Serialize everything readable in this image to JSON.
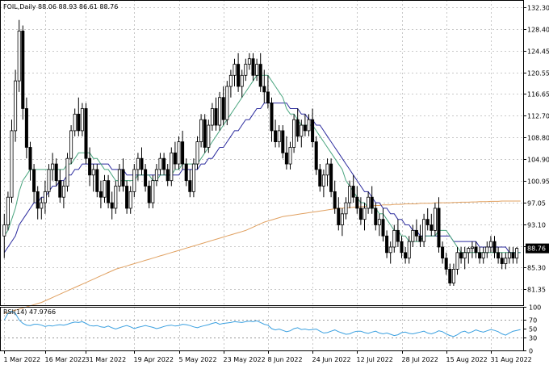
{
  "chart_data": [
    {
      "type": "candlestick",
      "title": "FOIL,Daily",
      "ohlc_label": "88.06 88.93 86.61 88.76",
      "last_price_label": "88.76",
      "last_price": 88.76,
      "ylim": [
        78.5,
        133.6
      ],
      "y_ticks": [
        "132.30",
        "128.40",
        "124.45",
        "120.55",
        "116.65",
        "112.70",
        "108.80",
        "104.90",
        "100.95",
        "97.05",
        "93.10",
        "89.20",
        "85.30",
        "81.35"
      ],
      "y_tick_values": [
        132.3,
        128.4,
        124.45,
        120.55,
        116.65,
        112.7,
        108.8,
        104.9,
        100.95,
        97.05,
        93.1,
        89.2,
        85.3,
        81.35
      ],
      "colors": {
        "candle": "#000000",
        "ma_fast": "#4aa57f",
        "ma_mid": "#2b2b9e",
        "ma_slow": "#e0a060",
        "grid": "#c8c8c8"
      },
      "x_ticks": [
        "1 Mar 2022",
        "16 Mar 2022",
        "31 Mar 2022",
        "19 Apr 2022",
        "5 May 2022",
        "23 May 2022",
        "8 Jun 2022",
        "24 Jun 2022",
        "12 Jul 2022",
        "28 Jul 2022",
        "15 Aug 2022",
        "31 Aug 2022"
      ],
      "x_tick_index": [
        0,
        11,
        22,
        35,
        47,
        59,
        71,
        83,
        95,
        107,
        119,
        131
      ],
      "bar_count": 140,
      "ohlc": [
        [
          91,
          95,
          87,
          93
        ],
        [
          93,
          99,
          92,
          98
        ],
        [
          98,
          112,
          97,
          110
        ],
        [
          110,
          121,
          108,
          119
        ],
        [
          119,
          130,
          117,
          128
        ],
        [
          128,
          129,
          112,
          114
        ],
        [
          114,
          116,
          105,
          107
        ],
        [
          107,
          108,
          101,
          103
        ],
        [
          103,
          104,
          97,
          99
        ],
        [
          99,
          100,
          94,
          96
        ],
        [
          96,
          98,
          94,
          97
        ],
        [
          97,
          101,
          95,
          99
        ],
        [
          99,
          104,
          98,
          103
        ],
        [
          103,
          106,
          101,
          104
        ],
        [
          104,
          105,
          100,
          101
        ],
        [
          101,
          103,
          97,
          98
        ],
        [
          98,
          101,
          96,
          100
        ],
        [
          100,
          106,
          99,
          105
        ],
        [
          105,
          111,
          104,
          110
        ],
        [
          110,
          114,
          109,
          113
        ],
        [
          113,
          116,
          109,
          110
        ],
        [
          110,
          115,
          109,
          114
        ],
        [
          114,
          115,
          104,
          105
        ],
        [
          105,
          107,
          100,
          102
        ],
        [
          102,
          104,
          99,
          103
        ],
        [
          103,
          104,
          98,
          99
        ],
        [
          99,
          101,
          96,
          98
        ],
        [
          98,
          102,
          97,
          101
        ],
        [
          101,
          102,
          96,
          97
        ],
        [
          97,
          99,
          94,
          96
        ],
        [
          96,
          101,
          95,
          100
        ],
        [
          100,
          104,
          99,
          103
        ],
        [
          103,
          105,
          99,
          100
        ],
        [
          100,
          101,
          95,
          96
        ],
        [
          96,
          100,
          95,
          99
        ],
        [
          99,
          104,
          98,
          103
        ],
        [
          103,
          106,
          101,
          105
        ],
        [
          105,
          107,
          102,
          103
        ],
        [
          103,
          104,
          99,
          100
        ],
        [
          100,
          101,
          96,
          97
        ],
        [
          97,
          102,
          96,
          101
        ],
        [
          101,
          104,
          100,
          103
        ],
        [
          103,
          106,
          102,
          105
        ],
        [
          105,
          106,
          102,
          103
        ],
        [
          103,
          104,
          100,
          101
        ],
        [
          101,
          107,
          100,
          106
        ],
        [
          106,
          108,
          103,
          104
        ],
        [
          104,
          109,
          103,
          108
        ],
        [
          108,
          110,
          103,
          104
        ],
        [
          104,
          105,
          100,
          101
        ],
        [
          101,
          103,
          98,
          99
        ],
        [
          99,
          105,
          98,
          104
        ],
        [
          104,
          109,
          103,
          108
        ],
        [
          108,
          113,
          107,
          112
        ],
        [
          112,
          113,
          106,
          107
        ],
        [
          107,
          112,
          106,
          111
        ],
        [
          111,
          115,
          110,
          114
        ],
        [
          114,
          116,
          110,
          111
        ],
        [
          111,
          117,
          110,
          116
        ],
        [
          116,
          118,
          111,
          112
        ],
        [
          112,
          119,
          111,
          118
        ],
        [
          118,
          121,
          116,
          120
        ],
        [
          120,
          123,
          118,
          122
        ],
        [
          122,
          124,
          117,
          118
        ],
        [
          118,
          121,
          116,
          120
        ],
        [
          120,
          123,
          119,
          122
        ],
        [
          122,
          124,
          121,
          123
        ],
        [
          123,
          124,
          119,
          120
        ],
        [
          120,
          123,
          119,
          122
        ],
        [
          122,
          124,
          117,
          118
        ],
        [
          118,
          121,
          115,
          117
        ],
        [
          117,
          120,
          114,
          115
        ],
        [
          115,
          116,
          108,
          110
        ],
        [
          110,
          112,
          107,
          108
        ],
        [
          108,
          111,
          107,
          110
        ],
        [
          110,
          111,
          105,
          106
        ],
        [
          106,
          109,
          103,
          104
        ],
        [
          104,
          108,
          103,
          107
        ],
        [
          107,
          113,
          106,
          112
        ],
        [
          112,
          114,
          108,
          109
        ],
        [
          109,
          112,
          107,
          111
        ],
        [
          111,
          113,
          109,
          110
        ],
        [
          110,
          113,
          109,
          112
        ],
        [
          112,
          114,
          107,
          108
        ],
        [
          108,
          109,
          102,
          103
        ],
        [
          103,
          104,
          99,
          100
        ],
        [
          100,
          103,
          98,
          102
        ],
        [
          102,
          105,
          100,
          104
        ],
        [
          104,
          105,
          98,
          99
        ],
        [
          99,
          101,
          95,
          96
        ],
        [
          96,
          98,
          92,
          93
        ],
        [
          93,
          96,
          91,
          95
        ],
        [
          95,
          98,
          94,
          97
        ],
        [
          97,
          101,
          96,
          100
        ],
        [
          100,
          102,
          97,
          98
        ],
        [
          98,
          100,
          95,
          96
        ],
        [
          96,
          98,
          93,
          94
        ],
        [
          94,
          97,
          92,
          96
        ],
        [
          96,
          99,
          95,
          98
        ],
        [
          98,
          100,
          95,
          96
        ],
        [
          96,
          97,
          92,
          93
        ],
        [
          93,
          95,
          91,
          94
        ],
        [
          94,
          96,
          90,
          91
        ],
        [
          91,
          92,
          87,
          88
        ],
        [
          88,
          90,
          86,
          89
        ],
        [
          89,
          93,
          88,
          92
        ],
        [
          92,
          94,
          89,
          90
        ],
        [
          90,
          91,
          87,
          88
        ],
        [
          88,
          89,
          86,
          87
        ],
        [
          87,
          91,
          86,
          90
        ],
        [
          90,
          93,
          89,
          92
        ],
        [
          92,
          94,
          90,
          91
        ],
        [
          91,
          93,
          89,
          90
        ],
        [
          90,
          95,
          89,
          94
        ],
        [
          94,
          96,
          92,
          93
        ],
        [
          93,
          95,
          91,
          92
        ],
        [
          92,
          97,
          91,
          96
        ],
        [
          96,
          98,
          88,
          89
        ],
        [
          89,
          90,
          86,
          87
        ],
        [
          87,
          88,
          84,
          85
        ],
        [
          85,
          86,
          82,
          82.5
        ],
        [
          82.5,
          86,
          82,
          85
        ],
        [
          85,
          89,
          84,
          88
        ],
        [
          88,
          89,
          86,
          87
        ],
        [
          87,
          89,
          85,
          88
        ],
        [
          88,
          89,
          86,
          88.76
        ],
        [
          88.76,
          90,
          87,
          89
        ],
        [
          89,
          90,
          87,
          88
        ],
        [
          88,
          89,
          86,
          87
        ],
        [
          87,
          89,
          86,
          88
        ],
        [
          88,
          90,
          87,
          89
        ],
        [
          89,
          91,
          88,
          90
        ],
        [
          90,
          91,
          87,
          88
        ],
        [
          88,
          89,
          86,
          87
        ],
        [
          87,
          88,
          85,
          86
        ],
        [
          86,
          88,
          85,
          87
        ],
        [
          87,
          89,
          86,
          88
        ],
        [
          88,
          89,
          86,
          87
        ],
        [
          87,
          89,
          86,
          88.76
        ]
      ],
      "ma_fast": [
        91,
        92,
        94,
        96,
        99,
        101,
        102,
        103,
        103,
        103,
        103,
        103,
        103,
        103,
        103,
        103,
        103,
        104,
        104,
        105,
        106,
        106,
        106,
        106,
        105,
        105,
        104,
        103,
        103,
        102,
        101,
        101,
        101,
        101,
        101,
        101,
        102,
        102,
        102,
        102,
        101,
        101,
        102,
        102,
        102,
        102,
        103,
        103,
        104,
        104,
        104,
        104,
        104,
        105,
        106,
        107,
        108,
        109,
        110,
        111,
        112,
        113,
        114,
        115,
        116,
        117,
        118,
        119,
        120,
        120,
        120,
        120,
        119,
        118,
        117,
        116,
        114,
        113,
        113,
        112,
        111,
        111,
        111,
        111,
        110,
        109,
        108,
        107,
        106,
        105,
        104,
        103,
        101,
        100,
        99,
        98,
        97,
        97,
        96,
        96,
        96,
        95,
        95,
        94,
        93,
        92,
        92,
        91,
        91,
        90,
        90,
        90,
        90,
        91,
        91,
        91,
        91,
        92,
        92,
        92,
        91,
        90,
        89,
        88,
        88,
        88,
        88,
        88,
        88,
        88,
        88,
        88,
        88,
        88,
        88,
        88,
        88,
        88,
        88,
        88
      ],
      "ma_mid": [
        88,
        89,
        90,
        91,
        93,
        94,
        95,
        96,
        97,
        97,
        98,
        98,
        99,
        100,
        100,
        101,
        101,
        102,
        102,
        103,
        103,
        104,
        104,
        104,
        104,
        104,
        104,
        104,
        104,
        103,
        103,
        103,
        103,
        102,
        102,
        102,
        102,
        102,
        102,
        102,
        102,
        102,
        102,
        102,
        102,
        102,
        102,
        102,
        103,
        103,
        103,
        103,
        103,
        104,
        104,
        105,
        105,
        106,
        107,
        107,
        108,
        109,
        110,
        110,
        111,
        112,
        112,
        113,
        114,
        114,
        115,
        115,
        115,
        115,
        115,
        115,
        115,
        114,
        114,
        114,
        113,
        113,
        112,
        112,
        111,
        111,
        110,
        109,
        108,
        107,
        106,
        105,
        104,
        103,
        102,
        101,
        100,
        99,
        99,
        98,
        97,
        97,
        96,
        96,
        95,
        95,
        94,
        94,
        93,
        93,
        92,
        92,
        91,
        91,
        91,
        91,
        91,
        91,
        91,
        91,
        91,
        90,
        90,
        90,
        90,
        90,
        90,
        90,
        89,
        89,
        89,
        89,
        89,
        89,
        89,
        89,
        88,
        88,
        88,
        88
      ],
      "ma_slow": [
        77,
        77.2,
        77.4,
        77.6,
        77.8,
        78,
        78.2,
        78.4,
        78.6,
        78.8,
        79,
        79.3,
        79.6,
        79.9,
        80.2,
        80.5,
        80.8,
        81.1,
        81.4,
        81.7,
        82,
        82.3,
        82.6,
        82.9,
        83.2,
        83.5,
        83.8,
        84.1,
        84.4,
        84.7,
        85,
        85.2,
        85.4,
        85.6,
        85.8,
        86,
        86.2,
        86.4,
        86.6,
        86.8,
        87,
        87.2,
        87.4,
        87.6,
        87.8,
        88,
        88.2,
        88.4,
        88.6,
        88.8,
        89,
        89.2,
        89.4,
        89.6,
        89.8,
        90,
        90.2,
        90.4,
        90.6,
        90.8,
        91,
        91.2,
        91.4,
        91.6,
        91.8,
        92,
        92.3,
        92.6,
        92.9,
        93.2,
        93.5,
        93.7,
        93.9,
        94.1,
        94.3,
        94.5,
        94.6,
        94.7,
        94.8,
        94.9,
        95,
        95.1,
        95.2,
        95.3,
        95.4,
        95.5,
        95.6,
        95.7,
        95.8,
        95.9,
        96,
        96,
        96.1,
        96.1,
        96.2,
        96.2,
        96.3,
        96.3,
        96.4,
        96.4,
        96.5,
        96.5,
        96.6,
        96.6,
        96.6,
        96.7,
        96.7,
        96.7,
        96.8,
        96.8,
        96.8,
        96.8,
        96.9,
        96.9,
        96.9,
        96.9,
        97,
        97,
        97,
        97,
        97,
        97.05,
        97.05,
        97.1,
        97.1,
        97.1,
        97.15,
        97.15,
        97.2,
        97.2,
        97.2,
        97.25,
        97.25,
        97.25,
        97.3,
        97.3,
        97.3,
        97.3,
        97.3,
        97.3
      ]
    },
    {
      "type": "line",
      "title": "RSI(14) 47.9766",
      "ylim": [
        0,
        100
      ],
      "y_ticks": [
        "100",
        "70",
        "50",
        "30",
        "0"
      ],
      "y_tick_values": [
        100,
        70,
        50,
        30,
        0
      ],
      "color": "#3aa0e0",
      "values": [
        70,
        85,
        90,
        85,
        70,
        62,
        58,
        57,
        60,
        60,
        58,
        55,
        57,
        56,
        58,
        59,
        58,
        60,
        63,
        65,
        64,
        66,
        62,
        57,
        56,
        57,
        54,
        53,
        56,
        52,
        49,
        52,
        55,
        57,
        54,
        50,
        53,
        55,
        57,
        55,
        53,
        50,
        52,
        55,
        57,
        58,
        56,
        57,
        60,
        59,
        57,
        54,
        52,
        55,
        57,
        59,
        62,
        64,
        60,
        62,
        63,
        64,
        66,
        65,
        64,
        66,
        67,
        66,
        68,
        64,
        60,
        58,
        50,
        47,
        49,
        46,
        43,
        45,
        50,
        52,
        48,
        49,
        47,
        48,
        49,
        44,
        40,
        41,
        44,
        47,
        43,
        40,
        37,
        38,
        42,
        44,
        44,
        41,
        39,
        42,
        44,
        40,
        38,
        40,
        37,
        34,
        36,
        41,
        42,
        39,
        38,
        40,
        42,
        44,
        40,
        38,
        41,
        45,
        43,
        38,
        34,
        32,
        36,
        42,
        44,
        40,
        43,
        47,
        44,
        42,
        45,
        48,
        46,
        43,
        38,
        35,
        40,
        44,
        46,
        47.9766
      ]
    }
  ]
}
